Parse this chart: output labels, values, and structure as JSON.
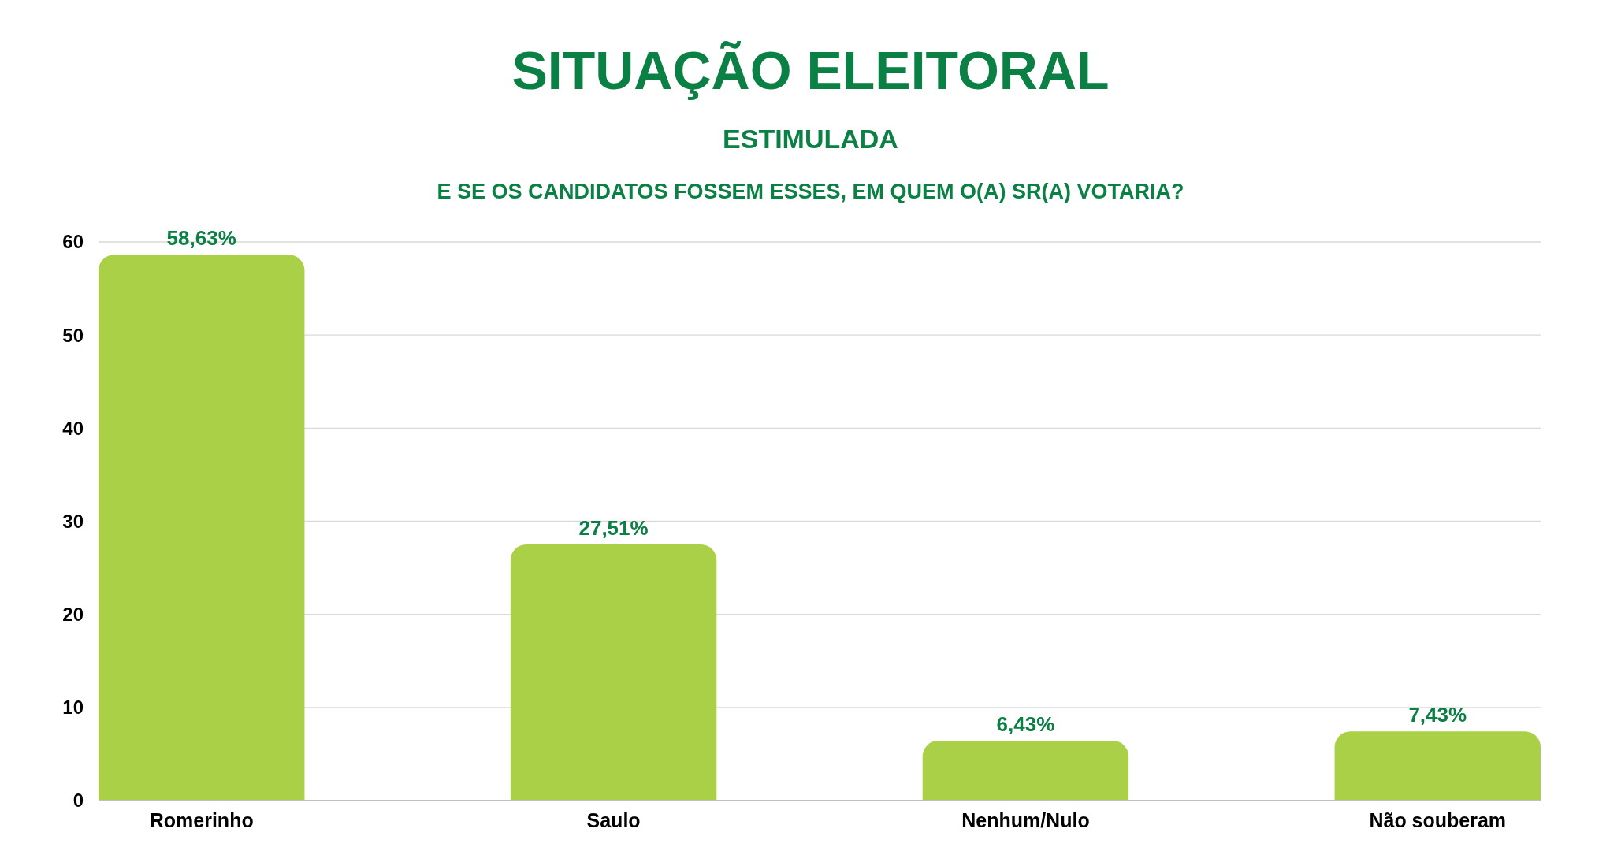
{
  "chart_data": {
    "type": "bar",
    "title": "SITUAÇÃO ELEITORAL",
    "subtitle": "ESTIMULADA",
    "annotations": [
      "E SE OS CANDIDATOS FOSSEM ESSES, EM QUEM O(A) SR(A) VOTARIA?"
    ],
    "categories": [
      "Romerinho",
      "Saulo",
      "Nenhum/Nulo",
      "Não souberam"
    ],
    "values": [
      58.63,
      27.51,
      6.43,
      7.43
    ],
    "color": "#a9d046",
    "value_labels": [
      "58,63%",
      "27,51%",
      "6,43%",
      "7,43%"
    ],
    "ylim": [
      0,
      60
    ],
    "yticks": [
      0,
      10,
      20,
      30,
      40,
      50,
      60
    ],
    "grid": "y"
  }
}
